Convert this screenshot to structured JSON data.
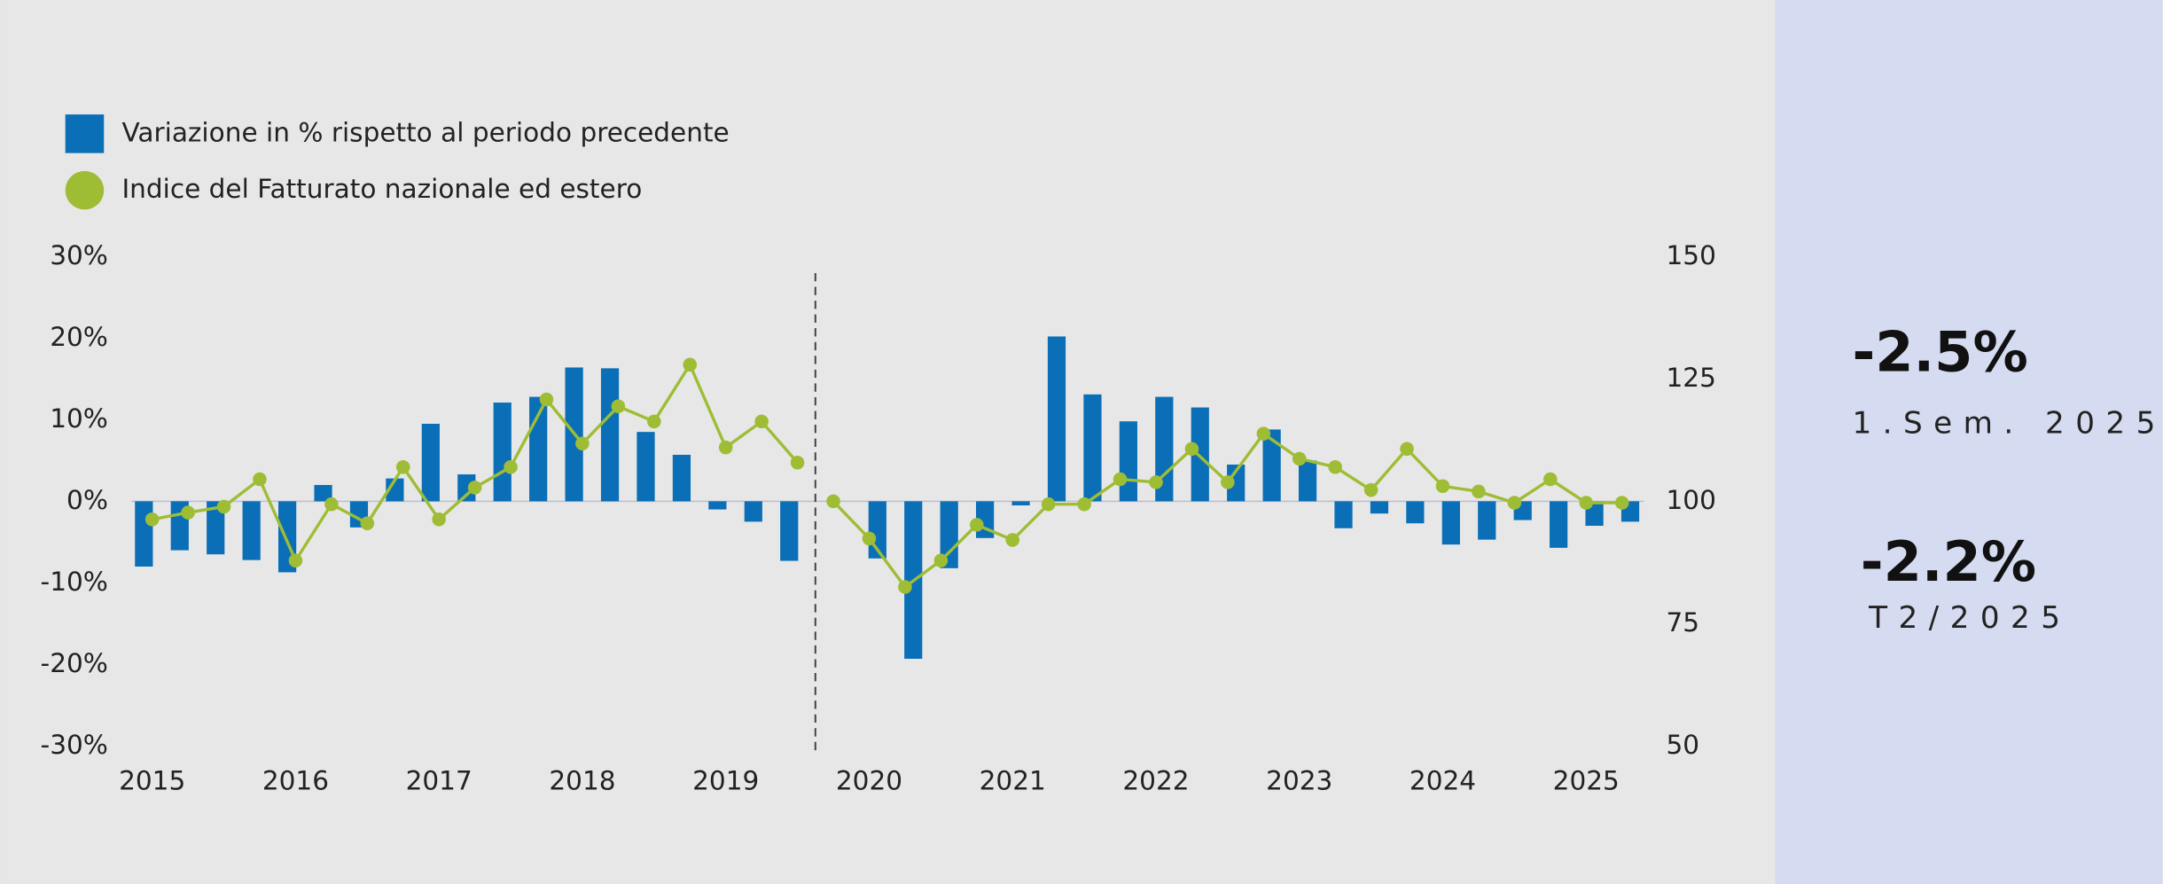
{
  "chart_data": {
    "type": "bar-line",
    "categories": [
      "2015",
      null,
      null,
      null,
      "2016",
      null,
      null,
      null,
      "2017",
      null,
      null,
      null,
      "2018",
      null,
      null,
      null,
      "2019",
      null,
      null,
      null,
      "2020",
      null,
      null,
      null,
      "2021",
      null,
      null,
      null,
      "2022",
      null,
      null,
      null,
      "2023",
      null,
      null,
      null,
      "2024",
      null,
      null,
      null,
      "2025",
      null
    ],
    "series": [
      {
        "name": "Variazione in % rispetto al periodo precedente",
        "type": "bar",
        "color": "#0a6fb7",
        "values": [
          -8,
          -6,
          -6.5,
          -7.2,
          -8.7,
          2,
          -3.2,
          2.8,
          9.5,
          3.3,
          12.1,
          12.8,
          16.4,
          16.3,
          8.5,
          5.7,
          -1,
          -2.5,
          -7.3,
          null,
          -7,
          -19.3,
          -8.2,
          -4.5,
          -0.5,
          20.2,
          13.1,
          9.8,
          12.8,
          11.5,
          4.5,
          8.8,
          5,
          -3.3,
          -1.5,
          -2.7,
          -5.3,
          -4.7,
          -2.3,
          -5.7,
          -3,
          -2.5
        ]
      },
      {
        "name": "Indice del Fatturato nazionale ed estero",
        "type": "line",
        "axis": "y2",
        "color": "#9ebd35",
        "values": [
          96.3,
          97.7,
          98.9,
          104.5,
          87.9,
          99.4,
          95.5,
          107,
          96.3,
          102.8,
          107,
          120.8,
          111.8,
          119.4,
          116.3,
          127.9,
          111,
          116.3,
          107.9,
          null,
          null,
          null,
          null,
          null,
          null,
          null,
          null,
          null,
          null,
          null,
          null,
          null,
          null,
          null,
          null,
          null,
          null,
          null,
          null,
          null,
          null,
          null
        ]
      },
      {
        "name": null,
        "type": "line",
        "axis": "y2",
        "color": "#9ebd35",
        "values": [
          null,
          null,
          null,
          null,
          null,
          null,
          null,
          null,
          null,
          null,
          null,
          null,
          null,
          null,
          null,
          null,
          null,
          null,
          null,
          100,
          92.4,
          82.5,
          87.9,
          95.2,
          92.1,
          99.4,
          99.4,
          104.5,
          103.9,
          110.7,
          103.9,
          113.8,
          108.7,
          107,
          102.3,
          110.7,
          103.1,
          102,
          99.7,
          104.5,
          99.7,
          99.7
        ]
      }
    ],
    "ylim": [
      -30,
      30
    ],
    "yticks": [
      {
        "value": -30,
        "label": "-30%"
      },
      {
        "value": -20,
        "label": "-20%"
      },
      {
        "value": -10,
        "label": "-10%"
      },
      {
        "value": 0,
        "label": "0%"
      },
      {
        "value": 10,
        "label": "10%"
      },
      {
        "value": 20,
        "label": "20%"
      },
      {
        "value": 30,
        "label": "30%"
      }
    ],
    "y2lim": [
      50,
      150
    ],
    "y2ticks": [
      50,
      75,
      100,
      125,
      150
    ],
    "legend": "top-left"
  },
  "kpis": [
    {
      "value": "-2.5%",
      "label": "1.Sem. 2025"
    },
    {
      "value": "-2.2%",
      "label": "T2/2025"
    }
  ]
}
